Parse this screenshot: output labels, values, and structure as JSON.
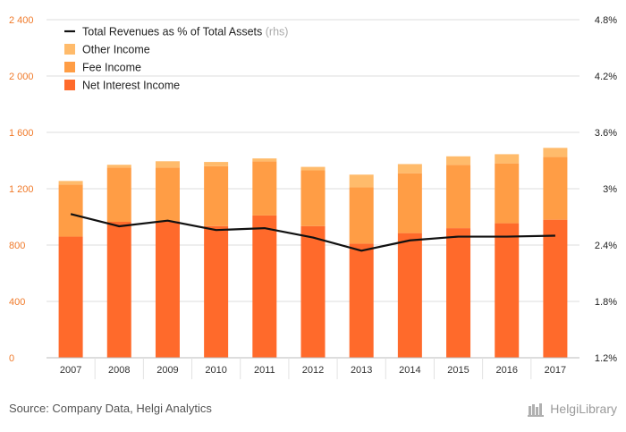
{
  "chart_data": {
    "type": "bar",
    "stacked": true,
    "categories": [
      "2007",
      "2008",
      "2009",
      "2010",
      "2011",
      "2012",
      "2013",
      "2014",
      "2015",
      "2016",
      "2017"
    ],
    "series": [
      {
        "name": "Net Interest Income",
        "axis": "left",
        "color": "#ff6a2b",
        "values": [
          860,
          965,
          970,
          935,
          1010,
          935,
          810,
          885,
          920,
          955,
          980
        ]
      },
      {
        "name": "Fee Income",
        "axis": "left",
        "color": "#ff9d45",
        "values": [
          370,
          385,
          380,
          425,
          385,
          395,
          400,
          425,
          450,
          425,
          445
        ]
      },
      {
        "name": "Other Income",
        "axis": "left",
        "color": "#ffbb6b",
        "values": [
          25,
          20,
          45,
          30,
          20,
          25,
          90,
          65,
          60,
          65,
          65
        ]
      },
      {
        "name": "Total Revenues as % of Total Assets",
        "rhs_tag": "(rhs)",
        "axis": "right",
        "type": "line",
        "color": "#111111",
        "values": [
          2.73,
          2.6,
          2.66,
          2.56,
          2.58,
          2.48,
          2.34,
          2.45,
          2.49,
          2.49,
          2.5
        ]
      }
    ],
    "y_left": {
      "ticks": [
        "0",
        "400",
        "800",
        "1 200",
        "1 600",
        "2 000",
        "2 400"
      ],
      "tick_values": [
        0,
        400,
        800,
        1200,
        1600,
        2000,
        2400
      ],
      "lim": [
        0,
        2400
      ]
    },
    "y_right": {
      "ticks": [
        "1.2%",
        "1.8%",
        "2.4%",
        "3%",
        "3.6%",
        "4.2%",
        "4.8%"
      ],
      "tick_values": [
        1.2,
        1.8,
        2.4,
        3.0,
        3.6,
        4.2,
        4.8
      ],
      "lim": [
        1.2,
        4.8
      ]
    },
    "grid": true,
    "legend_position": "top-left"
  },
  "footer": {
    "source": "Source: Company Data, Helgi Analytics",
    "brand": "HelgiLibrary"
  }
}
